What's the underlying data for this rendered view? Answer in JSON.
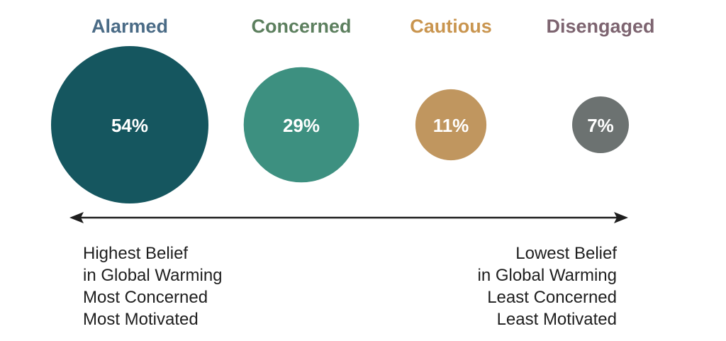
{
  "chart_data": {
    "type": "bubble",
    "segments": [
      {
        "name": "Alarmed",
        "value": 54,
        "label": "54%",
        "color": "#15565f",
        "title_color": "#4a6b86"
      },
      {
        "name": "Concerned",
        "value": 29,
        "label": "29%",
        "color": "#3d9080",
        "title_color": "#5c7f5e"
      },
      {
        "name": "Cautious",
        "value": 11,
        "label": "11%",
        "color": "#c0965f",
        "title_color": "#c9954f"
      },
      {
        "name": "Disengaged",
        "value": 7,
        "label": "7%",
        "color": "#6c7271",
        "title_color": "#7d6470"
      }
    ],
    "axis": {
      "arrow_color": "#1e1e1e",
      "left_label": [
        "Highest Belief",
        "in Global Warming",
        "Most Concerned",
        "Most Motivated"
      ],
      "right_label": [
        "Lowest Belief",
        "in Global Warming",
        "Least Concerned",
        "Least Motivated"
      ]
    }
  }
}
